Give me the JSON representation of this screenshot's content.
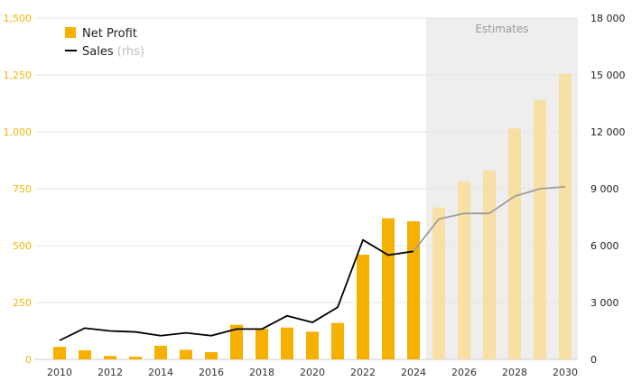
{
  "chart_data": {
    "type": "bar+line",
    "title": "",
    "x": [
      2010,
      2011,
      2012,
      2013,
      2014,
      2015,
      2016,
      2017,
      2018,
      2019,
      2020,
      2021,
      2022,
      2023,
      2024,
      2025,
      2026,
      2027,
      2028,
      2029,
      2030
    ],
    "x_tick_labels": [
      "2010",
      "2012",
      "2014",
      "2016",
      "2018",
      "2020",
      "2022",
      "2024",
      "2026",
      "2028",
      "2030"
    ],
    "estimates_from": 2025,
    "estimates_label": "Estimates",
    "legend": [
      {
        "name": "Net Profit",
        "suffix": ""
      },
      {
        "name": "Sales",
        "suffix": " (rhs)"
      }
    ],
    "legend_position": "top-left",
    "series": [
      {
        "name": "Net Profit",
        "type": "bar",
        "axis": "left",
        "values": [
          55,
          40,
          15,
          12,
          60,
          42,
          32,
          152,
          135,
          140,
          122,
          160,
          460,
          620,
          607,
          667,
          780,
          830,
          1015,
          1140,
          1255
        ]
      },
      {
        "name": "Sales",
        "type": "line",
        "axis": "right",
        "values": [
          1000,
          1650,
          1500,
          1450,
          1250,
          1400,
          1250,
          1600,
          1600,
          2300,
          1950,
          2750,
          6300,
          5500,
          5700,
          7400,
          7700,
          7700,
          8600,
          9000,
          9100
        ]
      }
    ],
    "y_left": {
      "min": 0,
      "max": 1500,
      "ticks": [
        0,
        250,
        500,
        750,
        1000,
        1250,
        1500
      ],
      "tick_labels": [
        "0",
        "250",
        "500",
        "750",
        "1,000",
        "1,250",
        "1,500"
      ]
    },
    "y_right": {
      "min": 0,
      "max": 18000,
      "ticks": [
        0,
        3000,
        6000,
        9000,
        12000,
        15000,
        18000
      ],
      "tick_labels": [
        "0",
        "3 000",
        "6 000",
        "9 000",
        "12 000",
        "15 000",
        "18 000"
      ]
    },
    "grid": true,
    "colors": {
      "bar": "#f5b000",
      "bar_estimate": "#f8dfa4",
      "line": "#000000",
      "line_estimate": "#9e9e9e",
      "estimate_band": "#eeeeee",
      "left_axis_text": "#f5b400",
      "grid": "#e6e6e6"
    }
  }
}
